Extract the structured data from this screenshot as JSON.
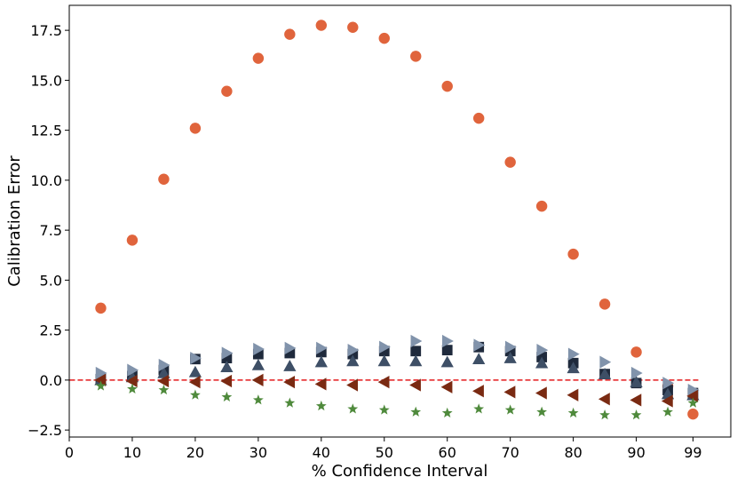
{
  "chart_data": {
    "type": "scatter",
    "title": "",
    "xlabel": "% Confidence Interval",
    "ylabel": "Calibration Error",
    "xlim": [
      0,
      105
    ],
    "ylim": [
      -2.85,
      18.75
    ],
    "x_ticks": [
      0,
      10,
      20,
      30,
      40,
      50,
      60,
      70,
      80,
      90,
      99
    ],
    "y_ticks": [
      -2.5,
      0.0,
      2.5,
      5.0,
      7.5,
      10.0,
      12.5,
      15.0,
      17.5
    ],
    "grid": false,
    "legend": "none",
    "x": [
      5,
      10,
      15,
      20,
      25,
      30,
      35,
      40,
      45,
      50,
      55,
      60,
      65,
      70,
      75,
      80,
      85,
      90,
      95,
      99
    ],
    "reference_line": {
      "y": 0.0,
      "color": "#e41a1c",
      "style": "dashed"
    },
    "series": [
      {
        "marker": "circle",
        "color": "#e0643c",
        "values": [
          3.6,
          7.0,
          10.05,
          12.6,
          14.45,
          16.1,
          17.3,
          17.75,
          17.65,
          17.1,
          16.2,
          14.7,
          13.1,
          10.9,
          8.7,
          6.3,
          3.8,
          1.4,
          -0.3,
          -1.7
        ]
      },
      {
        "marker": "square",
        "color": "#1f2a3c",
        "values": [
          0.05,
          0.2,
          0.5,
          1.05,
          1.1,
          1.3,
          1.35,
          1.4,
          1.3,
          1.45,
          1.45,
          1.5,
          1.65,
          1.45,
          1.15,
          0.85,
          0.3,
          -0.15,
          -0.5,
          -0.65
        ]
      },
      {
        "marker": "triangle-up",
        "color": "#3e4f66",
        "values": [
          0.0,
          0.15,
          0.35,
          0.4,
          0.65,
          0.75,
          0.7,
          0.9,
          0.95,
          0.95,
          0.95,
          0.9,
          1.05,
          1.1,
          0.85,
          0.6,
          0.3,
          -0.1,
          -0.7,
          -0.75
        ]
      },
      {
        "marker": "triangle-right",
        "color": "#8193ab",
        "values": [
          0.35,
          0.5,
          0.75,
          1.1,
          1.35,
          1.55,
          1.6,
          1.6,
          1.5,
          1.65,
          1.95,
          1.95,
          1.75,
          1.65,
          1.5,
          1.3,
          0.9,
          0.35,
          -0.15,
          -0.5
        ]
      },
      {
        "marker": "triangle-left",
        "color": "#7a2a12",
        "values": [
          0.0,
          -0.05,
          -0.05,
          -0.1,
          -0.05,
          0.0,
          -0.1,
          -0.2,
          -0.25,
          -0.1,
          -0.25,
          -0.35,
          -0.55,
          -0.6,
          -0.65,
          -0.75,
          -0.95,
          -1.0,
          -1.05,
          -0.8
        ]
      },
      {
        "marker": "star",
        "color": "#4f8a3c",
        "values": [
          -0.3,
          -0.45,
          -0.5,
          -0.75,
          -0.85,
          -1.0,
          -1.15,
          -1.3,
          -1.45,
          -1.5,
          -1.6,
          -1.65,
          -1.45,
          -1.5,
          -1.6,
          -1.65,
          -1.75,
          -1.75,
          -1.6,
          -1.15
        ]
      }
    ]
  }
}
